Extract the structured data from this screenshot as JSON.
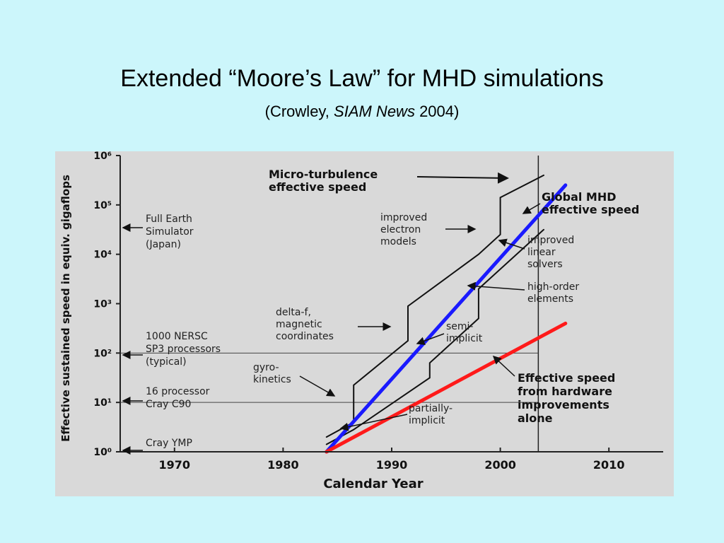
{
  "slide": {
    "title": "Extended “Moore’s Law” for MHD simulations",
    "subtitle_pre": "(Crowley, ",
    "subtitle_italic": "SIAM News",
    "subtitle_post": " 2004)"
  },
  "colors": {
    "background": "#ccf6fb",
    "blue_line": "#1a1aff",
    "red_line": "#ff1a1a",
    "figure_bg": "#d9d9d9"
  },
  "chart_data": {
    "type": "line",
    "xlabel": "Calendar Year",
    "ylabel": "Effective sustained speed in equiv. gigaflops",
    "xlim": [
      1965,
      2015
    ],
    "y_scale": "log",
    "ylim_exponent": [
      0,
      6
    ],
    "x_ticks": [
      1970,
      1980,
      1990,
      2000,
      2010
    ],
    "y_ticks": [
      {
        "exp": 0,
        "label": "10⁰"
      },
      {
        "exp": 1,
        "label": "10¹"
      },
      {
        "exp": 2,
        "label": "10²"
      },
      {
        "exp": 3,
        "label": "10³"
      },
      {
        "exp": 4,
        "label": "10⁴"
      },
      {
        "exp": 5,
        "label": "10⁵"
      },
      {
        "exp": 6,
        "label": "10⁶"
      }
    ],
    "series": [
      {
        "name": "Micro-turbulence effective speed",
        "color": "#111111",
        "points": [
          [
            1984,
            0.3
          ],
          [
            1986.5,
            0.6
          ],
          [
            1986.5,
            1.35
          ],
          [
            1991.5,
            2.25
          ],
          [
            1991.5,
            2.95
          ],
          [
            1998,
            4.0
          ],
          [
            2000,
            4.4
          ],
          [
            2000,
            5.15
          ],
          [
            2004,
            5.6
          ]
        ]
      },
      {
        "name": "Global MHD effective speed",
        "color": "#111111",
        "points": [
          [
            1984,
            0.15
          ],
          [
            1986.5,
            0.45
          ],
          [
            1993.5,
            1.5
          ],
          [
            1993.5,
            1.8
          ],
          [
            1998,
            2.7
          ],
          [
            1998,
            3.3
          ],
          [
            2001.5,
            4.0
          ],
          [
            2004,
            4.5
          ]
        ]
      },
      {
        "name": "",
        "color": "#1a1aff",
        "points": [
          [
            1984,
            0.0
          ],
          [
            2006,
            5.4
          ]
        ]
      },
      {
        "name": "",
        "color": "#ff1a1a",
        "points": [
          [
            1984,
            0.0
          ],
          [
            2006,
            2.6
          ]
        ]
      }
    ],
    "reference_lines": {
      "vertical": [
        2003.5
      ],
      "horizontal_exp": [
        2.0,
        1.0
      ]
    },
    "annotations_left": [
      {
        "lines": [
          "Full Earth",
          "Simulator",
          "(Japan)"
        ]
      },
      {
        "lines": [
          "1000 NERSC",
          "SP3 processors",
          "(typical)"
        ]
      },
      {
        "lines": [
          "16 processor",
          "Cray C90"
        ]
      },
      {
        "lines": [
          "Cray YMP"
        ]
      }
    ],
    "annotations": {
      "micro_turbulence": [
        "Micro-turbulence",
        "effective speed"
      ],
      "global_mhd": [
        "Global MHD",
        "effective speed"
      ],
      "improved_electron": [
        "improved",
        "electron",
        "models"
      ],
      "improved_linear": [
        "improved",
        "linear",
        "solvers"
      ],
      "high_order": [
        "high-order",
        "elements"
      ],
      "delta_f": [
        "delta-f,",
        "magnetic",
        "coordinates"
      ],
      "semi_implicit": [
        "semi-",
        "implicit"
      ],
      "gyro_kinetics": [
        "gyro-",
        "kinetics"
      ],
      "partially_implicit": [
        "partially-",
        "implicit"
      ],
      "effective_hardware": [
        "Effective speed",
        "from hardware",
        "improvements",
        "alone"
      ]
    }
  }
}
